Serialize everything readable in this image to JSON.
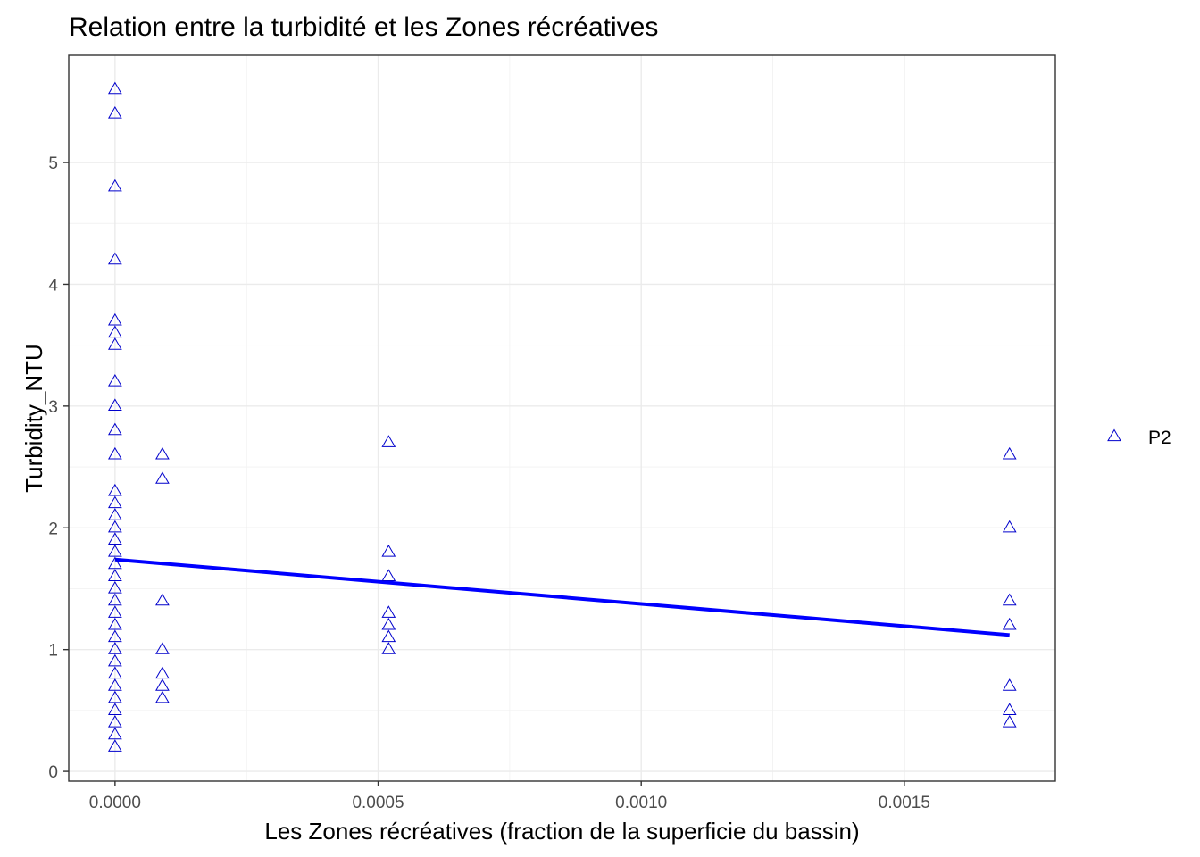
{
  "chart_data": {
    "type": "scatter",
    "title": "Relation entre la turbidité et les Zones récréatives",
    "xlabel": "Les Zones récréatives (fraction de la superficie du bassin)",
    "ylabel": "Turbidity_NTU",
    "xlim": [
      -8.8e-05,
      0.001787
    ],
    "ylim": [
      -0.08,
      5.88
    ],
    "x_ticks": [
      0.0,
      0.0005,
      0.001,
      0.0015
    ],
    "x_tick_labels": [
      "0.0000",
      "0.0005",
      "0.0010",
      "0.0015"
    ],
    "y_ticks": [
      0,
      1,
      2,
      3,
      4,
      5
    ],
    "y_tick_labels": [
      "0",
      "1",
      "2",
      "3",
      "4",
      "5"
    ],
    "grid": true,
    "legend_position": "right",
    "series": [
      {
        "name": "P2",
        "marker": "open-triangle",
        "color": "#0000cc",
        "points": [
          {
            "x": 0.0,
            "y": 5.6
          },
          {
            "x": 0.0,
            "y": 5.4
          },
          {
            "x": 0.0,
            "y": 4.8
          },
          {
            "x": 0.0,
            "y": 4.2
          },
          {
            "x": 0.0,
            "y": 3.7
          },
          {
            "x": 0.0,
            "y": 3.6
          },
          {
            "x": 0.0,
            "y": 3.5
          },
          {
            "x": 0.0,
            "y": 3.2
          },
          {
            "x": 0.0,
            "y": 3.0
          },
          {
            "x": 0.0,
            "y": 2.8
          },
          {
            "x": 0.0,
            "y": 2.6
          },
          {
            "x": 0.0,
            "y": 2.3
          },
          {
            "x": 0.0,
            "y": 2.2
          },
          {
            "x": 0.0,
            "y": 2.1
          },
          {
            "x": 0.0,
            "y": 2.0
          },
          {
            "x": 0.0,
            "y": 1.9
          },
          {
            "x": 0.0,
            "y": 1.8
          },
          {
            "x": 0.0,
            "y": 1.7
          },
          {
            "x": 0.0,
            "y": 1.6
          },
          {
            "x": 0.0,
            "y": 1.5
          },
          {
            "x": 0.0,
            "y": 1.4
          },
          {
            "x": 0.0,
            "y": 1.3
          },
          {
            "x": 0.0,
            "y": 1.2
          },
          {
            "x": 0.0,
            "y": 1.1
          },
          {
            "x": 0.0,
            "y": 1.0
          },
          {
            "x": 0.0,
            "y": 0.9
          },
          {
            "x": 0.0,
            "y": 0.8
          },
          {
            "x": 0.0,
            "y": 0.7
          },
          {
            "x": 0.0,
            "y": 0.6
          },
          {
            "x": 0.0,
            "y": 0.5
          },
          {
            "x": 0.0,
            "y": 0.4
          },
          {
            "x": 0.0,
            "y": 0.3
          },
          {
            "x": 0.0,
            "y": 0.2
          },
          {
            "x": 9e-05,
            "y": 2.6
          },
          {
            "x": 9e-05,
            "y": 2.4
          },
          {
            "x": 9e-05,
            "y": 1.4
          },
          {
            "x": 9e-05,
            "y": 1.0
          },
          {
            "x": 9e-05,
            "y": 0.8
          },
          {
            "x": 9e-05,
            "y": 0.7
          },
          {
            "x": 9e-05,
            "y": 0.6
          },
          {
            "x": 0.00052,
            "y": 2.7
          },
          {
            "x": 0.00052,
            "y": 1.8
          },
          {
            "x": 0.00052,
            "y": 1.6
          },
          {
            "x": 0.00052,
            "y": 1.3
          },
          {
            "x": 0.00052,
            "y": 1.2
          },
          {
            "x": 0.00052,
            "y": 1.1
          },
          {
            "x": 0.00052,
            "y": 1.0
          },
          {
            "x": 0.0017,
            "y": 2.6
          },
          {
            "x": 0.0017,
            "y": 2.0
          },
          {
            "x": 0.0017,
            "y": 1.4
          },
          {
            "x": 0.0017,
            "y": 1.2
          },
          {
            "x": 0.0017,
            "y": 0.7
          },
          {
            "x": 0.0017,
            "y": 0.5
          },
          {
            "x": 0.0017,
            "y": 0.4
          }
        ]
      }
    ],
    "trend_line": {
      "type": "linear",
      "color": "#0000ff",
      "x": [
        0.0,
        0.0017
      ],
      "y": [
        1.74,
        1.12
      ]
    }
  }
}
